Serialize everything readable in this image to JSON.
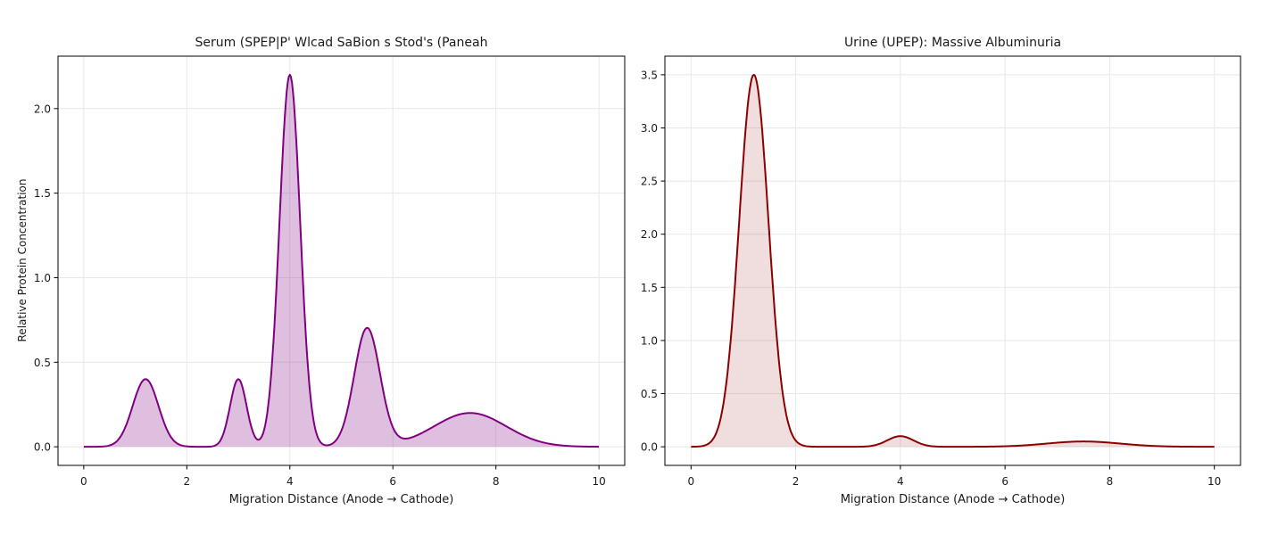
{
  "figure": {
    "background": "#ffffff"
  },
  "chart_data": [
    {
      "type": "area",
      "panel": "left",
      "title": "Serum (SPEP|P' Wlcad SaBion s Stod's (Paneah",
      "xlabel": "Migration Distance (Anode → Cathode)",
      "ylabel": "Relative Protein Concentration",
      "xlim": [
        -0.5,
        10.5
      ],
      "ylim": [
        -0.11,
        2.31
      ],
      "xticks": [
        0,
        2,
        4,
        6,
        8,
        10
      ],
      "xticklabels": [
        "0",
        "2",
        "4",
        "6",
        "8",
        "10"
      ],
      "yticks": [
        0,
        0.5,
        1,
        1.5,
        2
      ],
      "yticklabels": [
        "0.0",
        "0.5",
        "1.0",
        "1.5",
        "2.0"
      ],
      "grid": true,
      "line_color": "#800080",
      "fill_color": "rgba(128,0,128,0.25)",
      "peaks": [
        {
          "x": 1.2,
          "height": 0.4,
          "sigma": 0.25
        },
        {
          "x": 3.0,
          "height": 0.4,
          "sigma": 0.16
        },
        {
          "x": 4.0,
          "height": 2.2,
          "sigma": 0.2
        },
        {
          "x": 5.5,
          "height": 0.7,
          "sigma": 0.25
        },
        {
          "x": 7.5,
          "height": 0.2,
          "sigma": 0.7
        }
      ]
    },
    {
      "type": "area",
      "panel": "right",
      "title": "Urine (UPEP): Massive Albuminuria",
      "xlabel": "Migration Distance (Anode → Cathode)",
      "ylabel": "",
      "xlim": [
        -0.5,
        10.5
      ],
      "ylim": [
        -0.175,
        3.675
      ],
      "xticks": [
        0,
        2,
        4,
        6,
        8,
        10
      ],
      "xticklabels": [
        "0",
        "2",
        "4",
        "6",
        "8",
        "10"
      ],
      "yticks": [
        0,
        0.5,
        1,
        1.5,
        2,
        2.5,
        3,
        3.5
      ],
      "yticklabels": [
        "0.0",
        "0.5",
        "1.0",
        "1.5",
        "2.0",
        "2.5",
        "3.0",
        "3.5"
      ],
      "grid": true,
      "line_color": "#8B0000",
      "fill_color": "rgba(139,0,0,0.13)",
      "peaks": [
        {
          "x": 1.2,
          "height": 3.5,
          "sigma": 0.28
        },
        {
          "x": 4.0,
          "height": 0.1,
          "sigma": 0.25
        },
        {
          "x": 7.5,
          "height": 0.05,
          "sigma": 0.7
        }
      ]
    }
  ]
}
